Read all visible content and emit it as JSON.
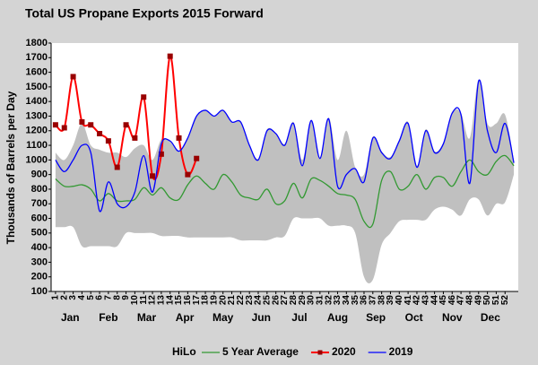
{
  "chart_data": {
    "type": "line",
    "title": "Total US Propane Exports 2015 Forward",
    "y_label": "Thousands of Barrels per Day",
    "month_labels": [
      "Jan",
      "Feb",
      "Mar",
      "Apr",
      "May",
      "Jun",
      "Jul",
      "Aug",
      "Sep",
      "Oct",
      "Nov",
      "Dec"
    ],
    "x": [
      1,
      2,
      3,
      4,
      5,
      6,
      7,
      8,
      9,
      10,
      11,
      12,
      13,
      14,
      15,
      16,
      17,
      18,
      19,
      20,
      21,
      22,
      23,
      24,
      25,
      26,
      27,
      28,
      29,
      30,
      31,
      32,
      33,
      34,
      35,
      36,
      37,
      38,
      39,
      40,
      41,
      42,
      43,
      44,
      45,
      46,
      47,
      48,
      49,
      50,
      51,
      52,
      53
    ],
    "xlim": [
      0.5,
      53.5
    ],
    "xticks": [
      1,
      2,
      3,
      4,
      5,
      6,
      7,
      8,
      9,
      10,
      11,
      12,
      13,
      14,
      15,
      16,
      17,
      18,
      19,
      20,
      21,
      22,
      23,
      24,
      25,
      26,
      27,
      28,
      29,
      30,
      31,
      32,
      33,
      34,
      35,
      36,
      37,
      38,
      39,
      40,
      41,
      42,
      43,
      44,
      45,
      46,
      47,
      48,
      49,
      50,
      51,
      52
    ],
    "ylim": [
      100,
      1800
    ],
    "yticks": [
      100,
      200,
      300,
      400,
      500,
      600,
      700,
      800,
      900,
      1000,
      1100,
      1200,
      1300,
      1400,
      1500,
      1600,
      1700,
      1800
    ],
    "band": {
      "name": "HiLo",
      "color": "#c0c0c0",
      "low": [
        540,
        540,
        540,
        410,
        410,
        410,
        410,
        410,
        500,
        500,
        500,
        500,
        480,
        480,
        480,
        470,
        470,
        470,
        470,
        470,
        470,
        450,
        450,
        450,
        450,
        470,
        480,
        600,
        600,
        600,
        600,
        550,
        550,
        550,
        500,
        200,
        180,
        420,
        500,
        580,
        590,
        590,
        590,
        660,
        680,
        660,
        620,
        730,
        730,
        620,
        700,
        710,
        900
      ],
      "high": [
        1050,
        1000,
        1100,
        1250,
        1100,
        1070,
        1050,
        1050,
        1020,
        1080,
        1100,
        1000,
        1140,
        1130,
        1060,
        1150,
        1300,
        1340,
        1300,
        1340,
        1260,
        1260,
        1100,
        1010,
        1210,
        1180,
        1110,
        1260,
        1000,
        1270,
        1020,
        1290,
        1000,
        1200,
        950,
        900,
        1160,
        1060,
        1020,
        1140,
        1260,
        960,
        1210,
        1060,
        1120,
        1330,
        1320,
        1150,
        1550,
        1250,
        1250,
        1310,
        1000
      ]
    },
    "series": [
      {
        "name": "5 Year Average",
        "color": "#339933",
        "values": [
          870,
          820,
          820,
          830,
          800,
          720,
          770,
          720,
          720,
          730,
          810,
          760,
          810,
          740,
          730,
          830,
          890,
          840,
          800,
          900,
          850,
          760,
          740,
          730,
          800,
          700,
          720,
          840,
          740,
          870,
          860,
          820,
          770,
          760,
          730,
          580,
          560,
          860,
          920,
          800,
          820,
          900,
          800,
          880,
          880,
          820,
          920,
          1000,
          920,
          900,
          990,
          1030,
          960
        ]
      },
      {
        "name": "2020",
        "color": "#ff0000",
        "marker_color": "#990000",
        "values": [
          1240,
          1220,
          1570,
          1260,
          1240,
          1180,
          1130,
          950,
          1240,
          1150,
          1430,
          890,
          1040,
          1710,
          1150,
          900,
          1010,
          null,
          null,
          null,
          null,
          null,
          null,
          null,
          null,
          null,
          null,
          null,
          null,
          null,
          null,
          null,
          null,
          null,
          null,
          null,
          null,
          null,
          null,
          null,
          null,
          null,
          null,
          null,
          null,
          null,
          null,
          null,
          null,
          null,
          null,
          null,
          null
        ]
      },
      {
        "name": "2019",
        "color": "#0000ff",
        "values": [
          1000,
          920,
          1000,
          1100,
          1050,
          650,
          850,
          700,
          680,
          780,
          1030,
          780,
          1110,
          1130,
          1060,
          1150,
          1300,
          1340,
          1300,
          1340,
          1260,
          1260,
          1100,
          1000,
          1200,
          1180,
          1100,
          1250,
          960,
          1270,
          1010,
          1280,
          820,
          900,
          940,
          850,
          1150,
          1050,
          1010,
          1130,
          1250,
          950,
          1200,
          1050,
          1110,
          1320,
          1310,
          840,
          1540,
          1200,
          1050,
          1250,
          980
        ]
      }
    ]
  }
}
